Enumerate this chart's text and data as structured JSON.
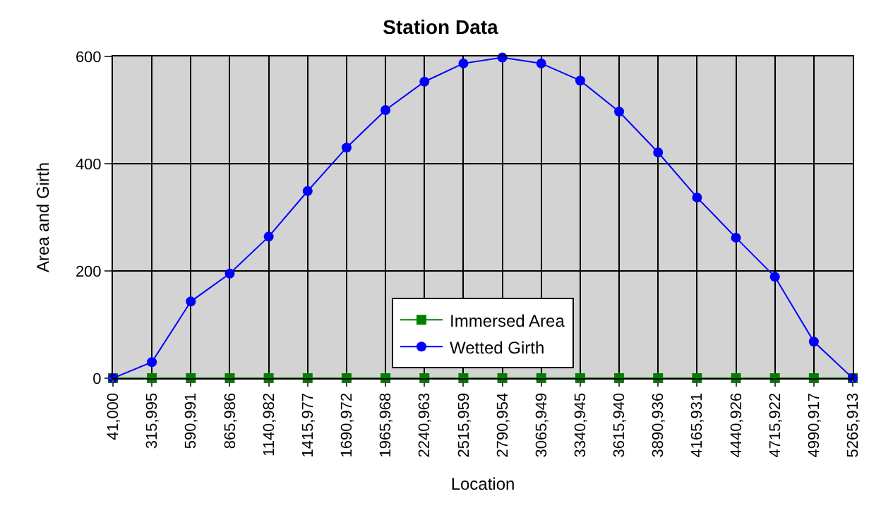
{
  "chart_data": {
    "type": "line",
    "title": "Station Data",
    "xlabel": "Location",
    "ylabel": "Area and Girth",
    "categories": [
      "41,000",
      "315,995",
      "590,991",
      "865,986",
      "1140,982",
      "1415,977",
      "1690,972",
      "1965,968",
      "2240,963",
      "2515,959",
      "2790,954",
      "3065,949",
      "3340,945",
      "3615,940",
      "3890,936",
      "4165,931",
      "4440,926",
      "4715,922",
      "4990,917",
      "5265,913"
    ],
    "series": [
      {
        "name": "Immersed Area",
        "color": "#008000",
        "marker": "square",
        "values": [
          0,
          0,
          0,
          0,
          0,
          0,
          0,
          0,
          0,
          0,
          0,
          0,
          0,
          0,
          0,
          0,
          0,
          0,
          0,
          0
        ]
      },
      {
        "name": "Wetted Girth",
        "color": "#0000ff",
        "marker": "circle",
        "values": [
          0,
          30,
          143,
          195,
          264,
          349,
          430,
          500,
          553,
          587,
          598,
          587,
          555,
          497,
          421,
          337,
          262,
          189,
          68,
          0
        ]
      }
    ],
    "ylim": [
      0,
      600
    ],
    "yticks": [
      0,
      200,
      400,
      600
    ],
    "grid": true,
    "legend": "bottom"
  }
}
